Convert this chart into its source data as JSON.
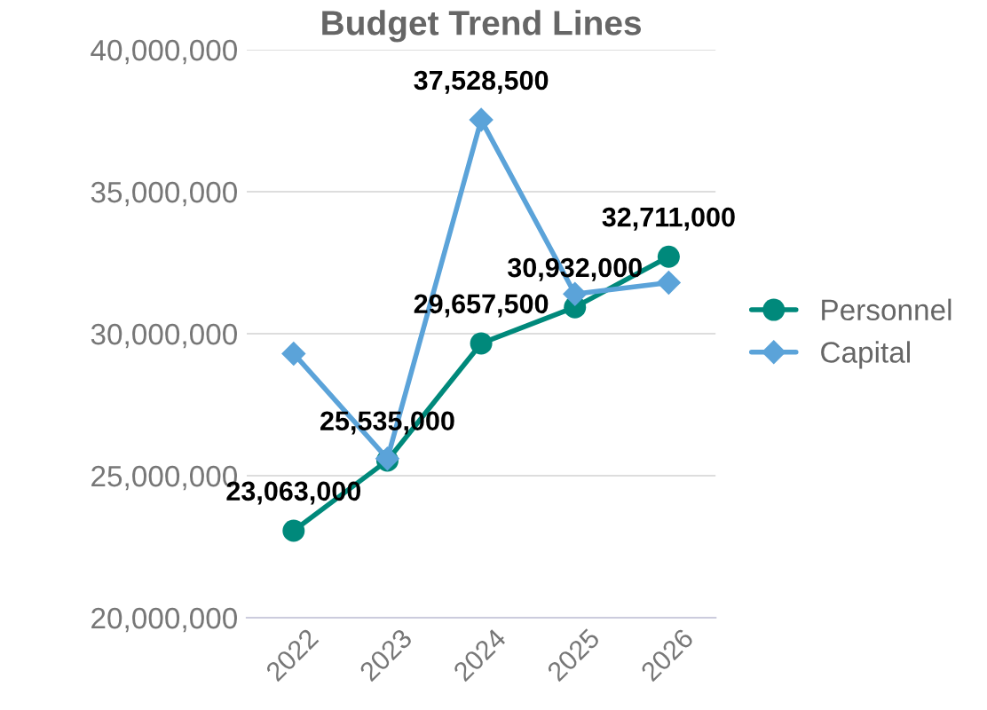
{
  "chart_data": {
    "type": "line",
    "title": "Budget Trend Lines",
    "categories": [
      "2022",
      "2023",
      "2024",
      "2025",
      "2026"
    ],
    "series": [
      {
        "name": "Personnel",
        "color": "#00897b",
        "marker": "circle",
        "values": [
          23063000,
          25535000,
          29657500,
          30932000,
          32711000
        ],
        "value_labels": [
          "23,063,000",
          "25,535,000",
          "29,657,500",
          "30,932,000",
          "32,711,000"
        ]
      },
      {
        "name": "Capital",
        "color": "#5ba3d9",
        "marker": "diamond",
        "values": [
          29300000,
          25600000,
          37528500,
          31400000,
          31800000
        ],
        "value_labels": [
          null,
          null,
          "37,528,500",
          null,
          null
        ]
      }
    ],
    "ylim": [
      20000000,
      40000000
    ],
    "yticks": [
      {
        "value": 20000000,
        "label": "20,000,000"
      },
      {
        "value": 25000000,
        "label": "25,000,000"
      },
      {
        "value": 30000000,
        "label": "30,000,000"
      },
      {
        "value": 35000000,
        "label": "35,000,000"
      },
      {
        "value": 40000000,
        "label": "40,000,000"
      }
    ],
    "grid": "y",
    "legend": "right",
    "line_style": "solid"
  }
}
